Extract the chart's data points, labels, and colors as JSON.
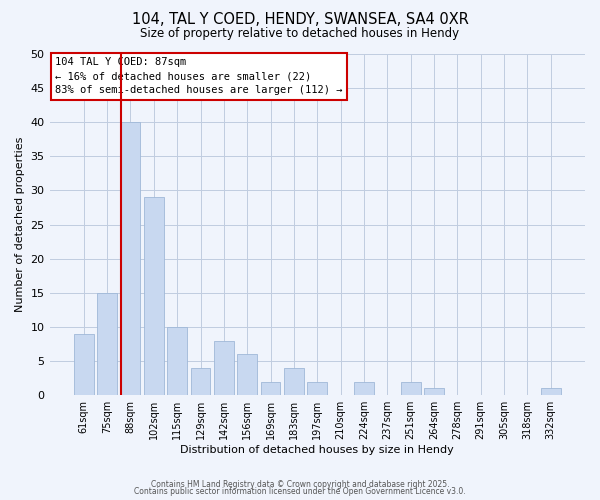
{
  "title": "104, TAL Y COED, HENDY, SWANSEA, SA4 0XR",
  "subtitle": "Size of property relative to detached houses in Hendy",
  "xlabel": "Distribution of detached houses by size in Hendy",
  "ylabel": "Number of detached properties",
  "bar_labels": [
    "61sqm",
    "75sqm",
    "88sqm",
    "102sqm",
    "115sqm",
    "129sqm",
    "142sqm",
    "156sqm",
    "169sqm",
    "183sqm",
    "197sqm",
    "210sqm",
    "224sqm",
    "237sqm",
    "251sqm",
    "264sqm",
    "278sqm",
    "291sqm",
    "305sqm",
    "318sqm",
    "332sqm"
  ],
  "bar_values": [
    9,
    15,
    40,
    29,
    10,
    4,
    8,
    6,
    2,
    4,
    2,
    0,
    2,
    0,
    2,
    1,
    0,
    0,
    0,
    0,
    1
  ],
  "bar_color": "#c8d8f0",
  "bar_edge_color": "#a0b8d8",
  "ylim": [
    0,
    50
  ],
  "yticks": [
    0,
    5,
    10,
    15,
    20,
    25,
    30,
    35,
    40,
    45,
    50
  ],
  "vline_index": 2,
  "vline_color": "#cc0000",
  "annotation_title": "104 TAL Y COED: 87sqm",
  "annotation_line1": "← 16% of detached houses are smaller (22)",
  "annotation_line2": "83% of semi-detached houses are larger (112) →",
  "annotation_box_color": "#ffffff",
  "annotation_box_edge": "#cc0000",
  "footer1": "Contains HM Land Registry data © Crown copyright and database right 2025.",
  "footer2": "Contains public sector information licensed under the Open Government Licence v3.0.",
  "background_color": "#f0f4fc",
  "grid_color": "#c0cce0"
}
